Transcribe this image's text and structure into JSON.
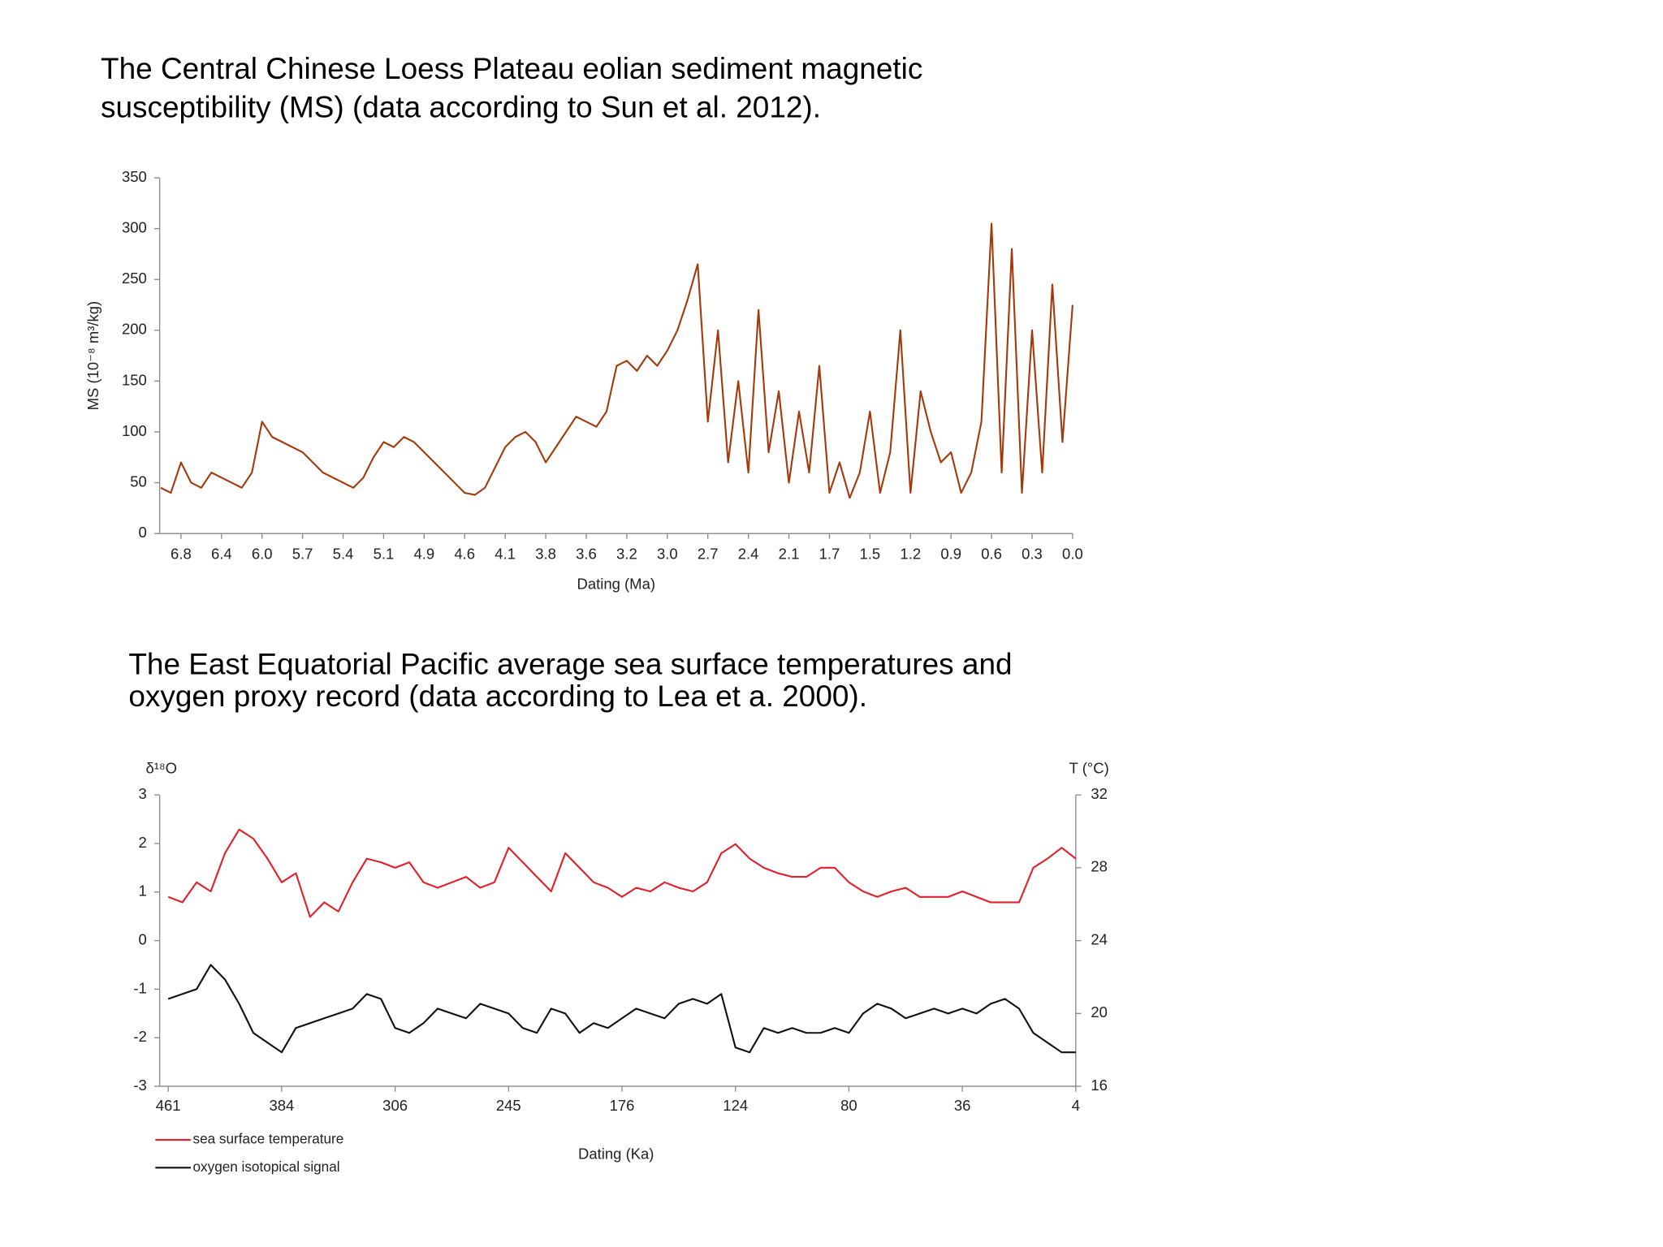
{
  "chart_data": [
    {
      "type": "line",
      "title": [
        "The Central Chinese Loess Plateau eolian sediment magnetic",
        "susceptibility (MS) (data according to Sun et al. 2012)."
      ],
      "xlabel": "Dating (Ma)",
      "ylabel": "MS (10⁻⁸ m³/kg)",
      "categories": [
        null,
        null,
        "6.8",
        null,
        null,
        null,
        "6.4",
        null,
        null,
        null,
        "6.0",
        null,
        null,
        null,
        "5.7",
        null,
        null,
        null,
        "5.4",
        null,
        null,
        null,
        "5.1",
        null,
        null,
        null,
        "4.9",
        null,
        null,
        null,
        "4.6",
        null,
        null,
        null,
        "4.1",
        null,
        null,
        null,
        "3.8",
        null,
        null,
        null,
        "3.6",
        null,
        null,
        null,
        "3.2",
        null,
        null,
        null,
        "3.0",
        null,
        null,
        null,
        "2.7",
        null,
        null,
        null,
        "2.4",
        null,
        null,
        null,
        "2.1",
        null,
        null,
        null,
        "1.7",
        null,
        null,
        null,
        "1.5",
        null,
        null,
        null,
        "1.2",
        null,
        null,
        null,
        "0.9",
        null,
        null,
        null,
        "0.6",
        null,
        null,
        null,
        "0.3",
        null,
        null,
        null,
        "0.0"
      ],
      "series": [
        {
          "name": "MS",
          "color": "#a33a0c",
          "values": [
            45,
            40,
            70,
            50,
            45,
            60,
            55,
            50,
            45,
            60,
            110,
            95,
            90,
            85,
            80,
            70,
            60,
            55,
            50,
            45,
            55,
            75,
            90,
            85,
            95,
            90,
            80,
            70,
            60,
            50,
            40,
            38,
            45,
            65,
            85,
            95,
            100,
            90,
            70,
            85,
            100,
            115,
            110,
            105,
            120,
            165,
            170,
            160,
            175,
            165,
            180,
            200,
            230,
            265,
            110,
            200,
            70,
            150,
            60,
            220,
            80,
            140,
            50,
            120,
            60,
            165,
            40,
            70,
            35,
            60,
            120,
            40,
            80,
            200,
            40,
            140,
            100,
            70,
            80,
            40,
            60,
            110,
            305,
            60,
            280,
            40,
            200,
            60,
            245,
            90,
            225
          ]
        }
      ],
      "ylim": [
        0,
        350
      ],
      "yticks": [
        0,
        50,
        100,
        150,
        200,
        250,
        300,
        350
      ],
      "legend": false
    },
    {
      "type": "line",
      "title": [
        "The East Equatorial Pacific average sea surface temperatures and",
        "oxygen proxy record (data according to Lea et a. 2000)."
      ],
      "xlabel": "Dating (Ka)",
      "ylabel": "δ¹⁸O",
      "y2label": "T (°C)",
      "categories": [
        "461",
        null,
        null,
        null,
        null,
        null,
        null,
        null,
        "384",
        null,
        null,
        null,
        null,
        null,
        null,
        null,
        "306",
        null,
        null,
        null,
        null,
        null,
        null,
        null,
        "245",
        null,
        null,
        null,
        null,
        null,
        null,
        null,
        "176",
        null,
        null,
        null,
        null,
        null,
        null,
        null,
        "124",
        null,
        null,
        null,
        null,
        null,
        null,
        null,
        "80",
        null,
        null,
        null,
        null,
        null,
        null,
        null,
        "36",
        null,
        null,
        null,
        null,
        null,
        null,
        null,
        "4"
      ],
      "series": [
        {
          "name": "sea surface temperature",
          "color": "#e0202a",
          "axis": "y2",
          "values": [
            26.4,
            26.1,
            27.2,
            26.7,
            28.8,
            30.1,
            29.6,
            28.5,
            27.2,
            27.7,
            25.3,
            26.1,
            25.6,
            27.2,
            28.5,
            28.3,
            28.0,
            28.3,
            27.2,
            26.9,
            27.2,
            27.5,
            26.9,
            27.2,
            29.1,
            28.3,
            27.5,
            26.7,
            28.8,
            28.0,
            27.2,
            26.9,
            26.4,
            26.9,
            26.7,
            27.2,
            26.9,
            26.7,
            27.2,
            28.8,
            29.3,
            28.5,
            28.0,
            27.7,
            27.5,
            27.5,
            28.0,
            28.0,
            27.2,
            26.7,
            26.4,
            26.7,
            26.9,
            26.4,
            26.4,
            26.4,
            26.7,
            26.4,
            26.1,
            26.1,
            26.1,
            28.0,
            28.5,
            29.1,
            28.5
          ]
        },
        {
          "name": "oxygen isotopical signal",
          "color": "#111111",
          "values": [
            -1.2,
            -1.1,
            -1.0,
            -0.5,
            -0.8,
            -1.3,
            -1.9,
            -2.1,
            -2.3,
            -1.8,
            -1.7,
            -1.6,
            -1.5,
            -1.4,
            -1.1,
            -1.2,
            -1.8,
            -1.9,
            -1.7,
            -1.4,
            -1.5,
            -1.6,
            -1.3,
            -1.4,
            -1.5,
            -1.8,
            -1.9,
            -1.4,
            -1.5,
            -1.9,
            -1.7,
            -1.8,
            -1.6,
            -1.4,
            -1.5,
            -1.6,
            -1.3,
            -1.2,
            -1.3,
            -1.1,
            -2.2,
            -2.3,
            -1.8,
            -1.9,
            -1.8,
            -1.9,
            -1.9,
            -1.8,
            -1.9,
            -1.5,
            -1.3,
            -1.4,
            -1.6,
            -1.5,
            -1.4,
            -1.5,
            -1.4,
            -1.5,
            -1.3,
            -1.2,
            -1.4,
            -1.9,
            -2.1,
            -2.3,
            -2.3
          ]
        }
      ],
      "ylim": [
        -3,
        3
      ],
      "yticks": [
        -3,
        -2,
        -1,
        0,
        1,
        2,
        3
      ],
      "y2lim": [
        16,
        32
      ],
      "y2ticks": [
        16,
        20,
        24,
        28,
        32
      ],
      "legend": true
    }
  ]
}
